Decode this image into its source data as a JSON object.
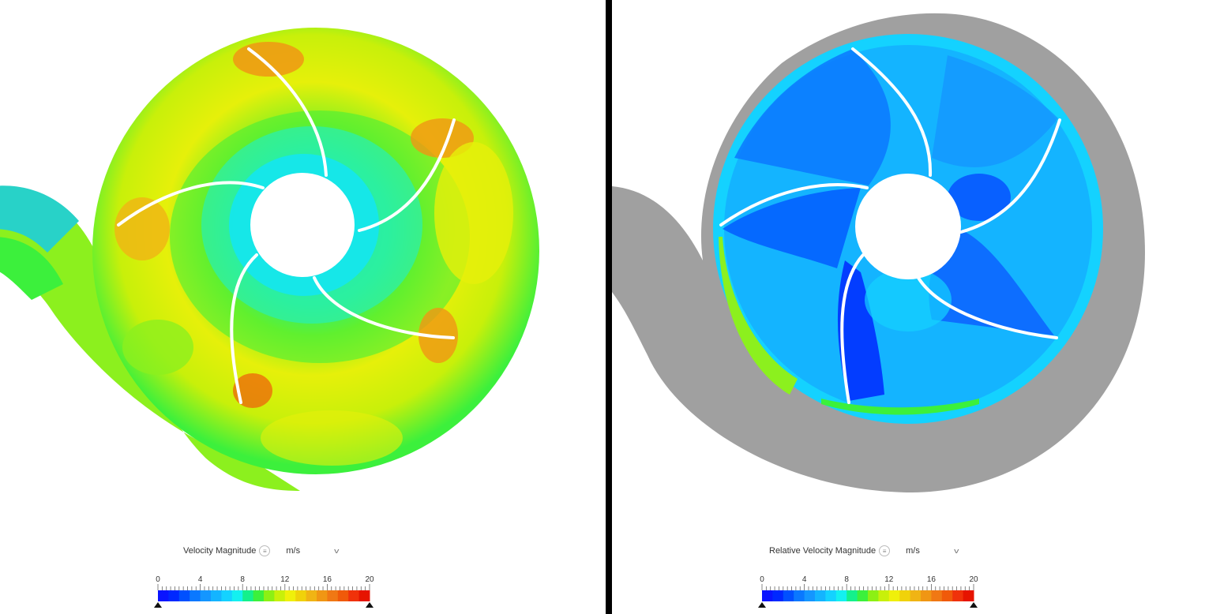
{
  "left_view": {
    "legend": {
      "title": "Velocity Magnitude",
      "unit": "m/s",
      "min": 0,
      "max": 20,
      "ticks": [
        "0",
        "4",
        "8",
        "12",
        "16",
        "20"
      ]
    }
  },
  "right_view": {
    "legend": {
      "title": "Relative Velocity Magnitude",
      "unit": "m/s",
      "min": 0,
      "max": 20,
      "ticks": [
        "0",
        "4",
        "8",
        "12",
        "16",
        "20"
      ]
    }
  },
  "icons": {
    "info": "info-icon",
    "dropdown": "chevron-down-icon",
    "slider": "triangle-marker-icon"
  },
  "colormap": [
    "#0a14ff",
    "#0028ff",
    "#0050ff",
    "#0a78ff",
    "#1496ff",
    "#14b4ff",
    "#14d2ff",
    "#14f0f0",
    "#14f08c",
    "#3cf03c",
    "#8cf014",
    "#c8f00a",
    "#f0f00a",
    "#f0d20a",
    "#f0b414",
    "#f09614",
    "#f07814",
    "#f05a0a",
    "#f0320a",
    "#e61400"
  ],
  "colors": {
    "background": "#ffffff",
    "divider": "#000000",
    "casing": "#a0a0a0",
    "blade": "#ffffff"
  }
}
